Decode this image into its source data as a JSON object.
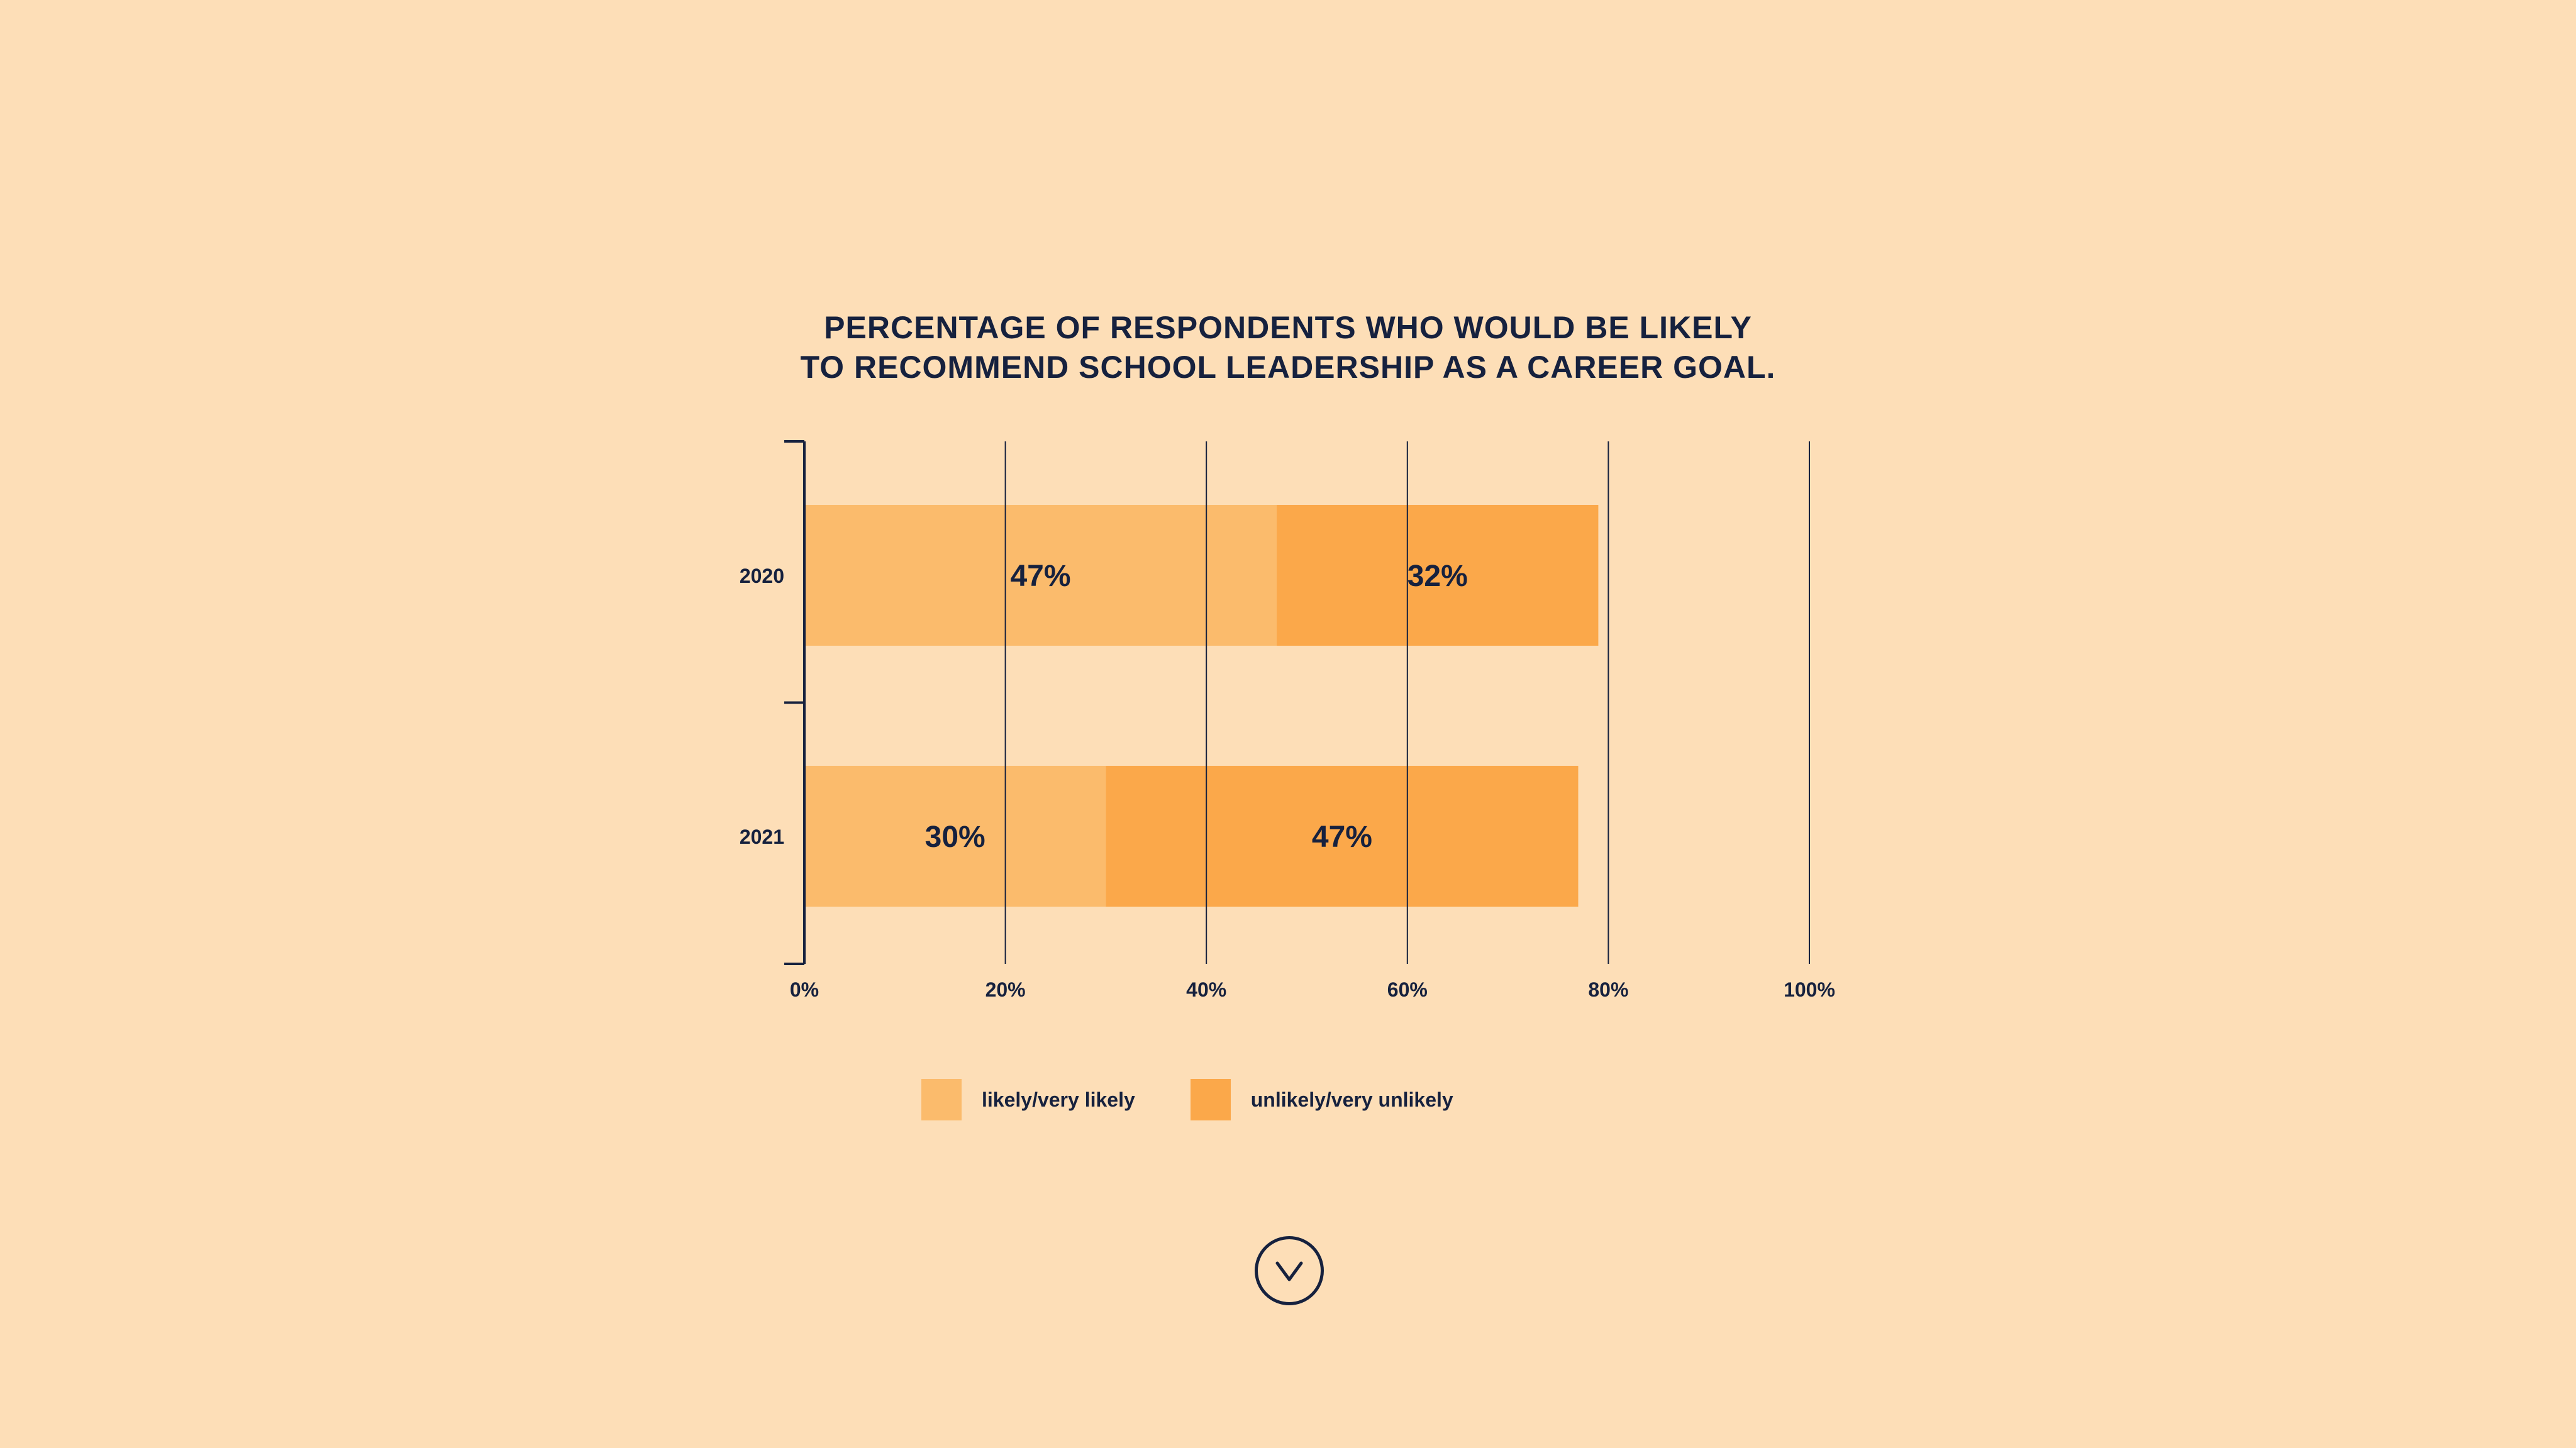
{
  "chart_data": {
    "type": "bar",
    "orientation": "horizontal",
    "stacked": true,
    "title_lines": [
      "PERCENTAGE OF RESPONDENTS WHO WOULD BE LIKELY",
      "TO RECOMMEND SCHOOL LEADERSHIP AS A CAREER GOAL."
    ],
    "categories": [
      "2020",
      "2021"
    ],
    "series": [
      {
        "name": "likely/very likely",
        "color": "#FBBB6C",
        "values": [
          47,
          30
        ],
        "labels": [
          "47%",
          "30%"
        ]
      },
      {
        "name": "unlikely/very unlikely",
        "color": "#FBA84A",
        "values": [
          32,
          47
        ],
        "labels": [
          "32%",
          "47%"
        ]
      }
    ],
    "xlim": [
      0,
      100
    ],
    "x_ticks": [
      0,
      20,
      40,
      60,
      80,
      100
    ],
    "x_tick_labels": [
      "0%",
      "20%",
      "40%",
      "60%",
      "80%",
      "100%"
    ],
    "grid": true,
    "legend_position": "bottom"
  },
  "scroll_icon": "chevron-down-circle-icon"
}
